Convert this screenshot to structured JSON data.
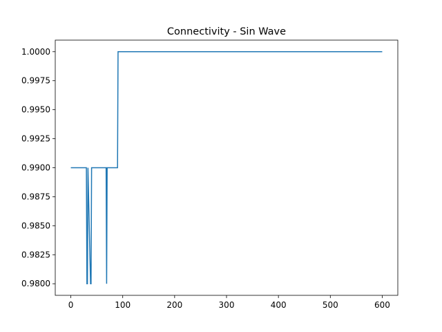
{
  "chart_data": {
    "type": "line",
    "title": "Connectivity - Sin Wave",
    "xlabel": "",
    "ylabel": "",
    "xlim": [
      -30,
      630
    ],
    "ylim": [
      0.979,
      1.001
    ],
    "grid": false,
    "x_ticks": [
      0,
      100,
      200,
      300,
      400,
      500,
      600
    ],
    "x_tick_labels": [
      "0",
      "100",
      "200",
      "300",
      "400",
      "500",
      "600"
    ],
    "y_ticks": [
      0.98,
      0.9825,
      0.985,
      0.9875,
      0.99,
      0.9925,
      0.995,
      0.9975,
      1.0
    ],
    "y_tick_labels": [
      "0.9800",
      "0.9825",
      "0.9850",
      "0.9875",
      "0.9900",
      "0.9925",
      "0.9950",
      "0.9975",
      "1.0000"
    ],
    "series": [
      {
        "color": "#1f77b4",
        "x": [
          0,
          30,
          31,
          32,
          33,
          38,
          39,
          40,
          67,
          68,
          69,
          70,
          90,
          91,
          600
        ],
        "y": [
          0.99,
          0.99,
          0.98,
          0.98,
          0.99,
          0.98,
          0.98,
          0.99,
          0.99,
          0.99,
          0.98,
          0.99,
          0.99,
          1.0,
          1.0
        ]
      }
    ]
  }
}
